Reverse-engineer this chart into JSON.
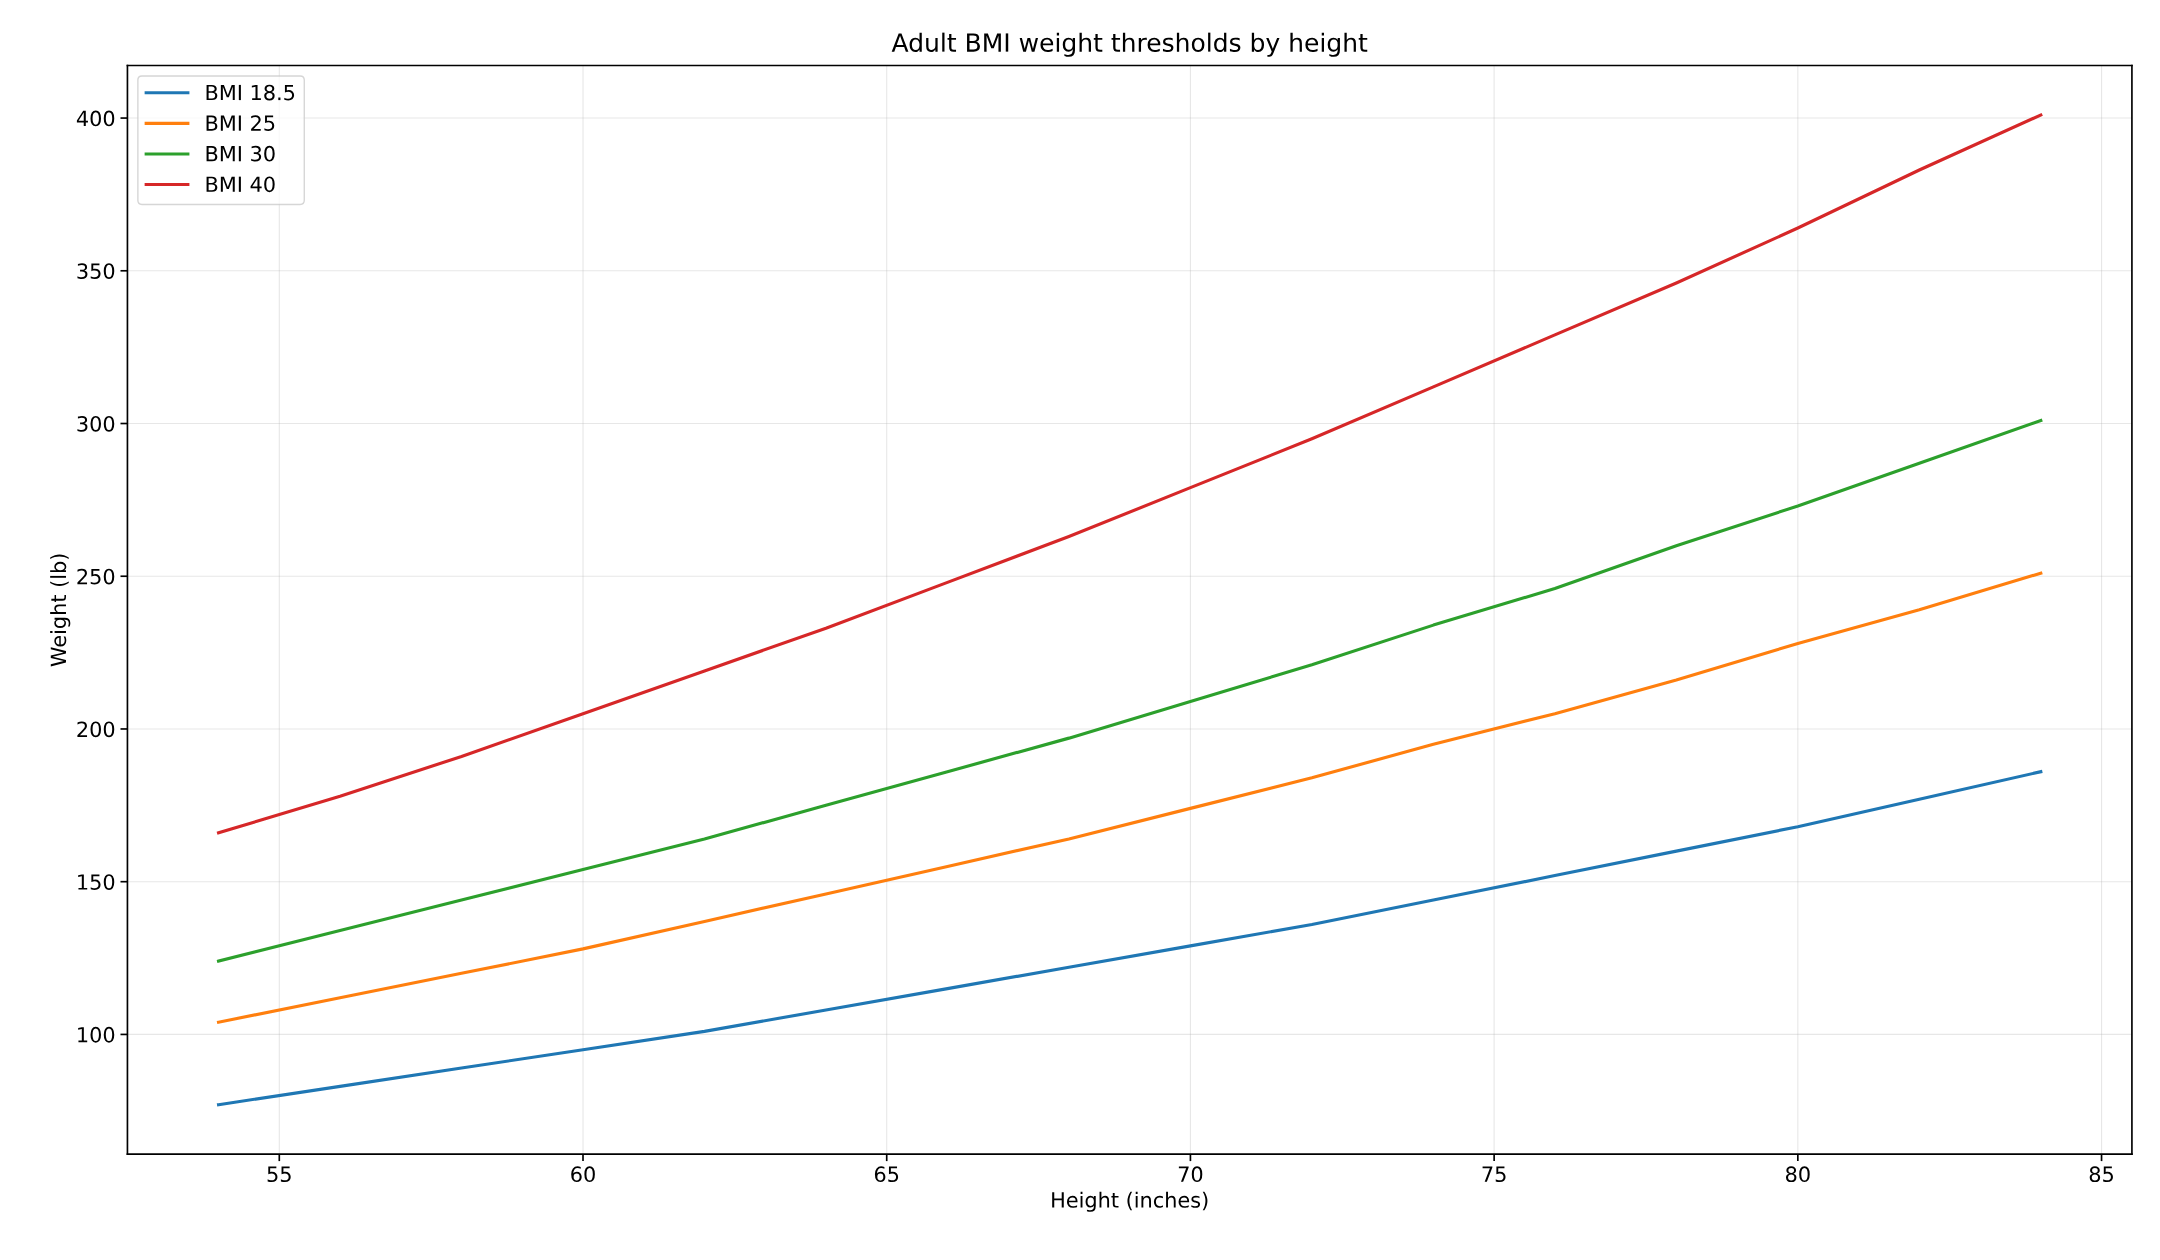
{
  "chart_data": {
    "type": "line",
    "title": "Adult BMI weight thresholds by height",
    "xlabel": "Height (inches)",
    "ylabel": "Weight (lb)",
    "x": [
      54,
      56,
      58,
      60,
      62,
      64,
      66,
      68,
      70,
      72,
      74,
      76,
      78,
      80,
      82,
      84
    ],
    "series": [
      {
        "name": "BMI 18.5",
        "color": "#1f77b4",
        "values": [
          77,
          83,
          89,
          95,
          101,
          108,
          115,
          122,
          129,
          136,
          144,
          152,
          160,
          168,
          177,
          186
        ]
      },
      {
        "name": "BMI 25",
        "color": "#ff7f0e",
        "values": [
          104,
          112,
          120,
          128,
          137,
          146,
          155,
          164,
          174,
          184,
          195,
          205,
          216,
          228,
          239,
          251
        ]
      },
      {
        "name": "BMI 30",
        "color": "#2ca02c",
        "values": [
          124,
          134,
          144,
          154,
          164,
          175,
          186,
          197,
          209,
          221,
          234,
          246,
          260,
          273,
          287,
          301
        ]
      },
      {
        "name": "BMI 40",
        "color": "#d62728",
        "values": [
          166,
          178,
          191,
          205,
          219,
          233,
          248,
          263,
          279,
          295,
          312,
          329,
          346,
          364,
          383,
          401
        ]
      }
    ],
    "xlim": [
      52.5,
      85.5
    ],
    "xticks": [
      55,
      60,
      65,
      70,
      75,
      80,
      85
    ],
    "ylim": [
      60.8,
      417.2
    ],
    "yticks": [
      100,
      150,
      200,
      250,
      300,
      350,
      400
    ],
    "grid": true,
    "legend": "top left",
    "marker": "none",
    "line_style": "solid"
  }
}
